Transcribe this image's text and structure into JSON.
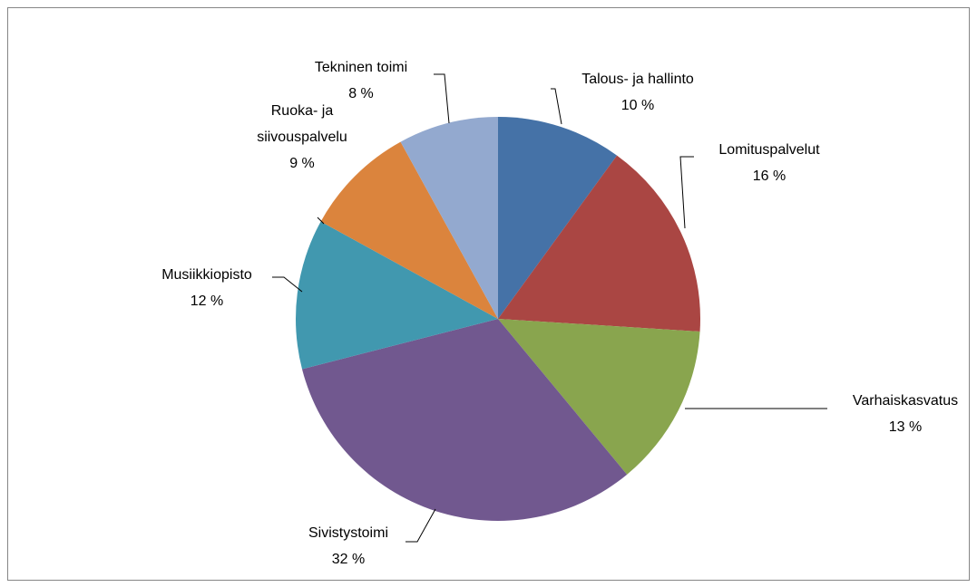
{
  "chart_data": {
    "type": "pie",
    "categories": [
      "Talous- ja hallinto",
      "Lomituspalvelut",
      "Varhaiskasvatus",
      "Sivistystoimi",
      "Musiikkiopisto",
      "Ruoka- ja siivouspalvelu",
      "Tekninen toimi"
    ],
    "values": [
      10,
      16,
      13,
      32,
      12,
      9,
      8
    ],
    "value_labels": [
      "10 %",
      "16 %",
      "13 %",
      "32 %",
      "12 %",
      "9 %",
      "8 %"
    ],
    "colors": [
      "#4572a7",
      "#aa4643",
      "#89a54e",
      "#71588f",
      "#4198af",
      "#db843d",
      "#93a9cf"
    ]
  }
}
